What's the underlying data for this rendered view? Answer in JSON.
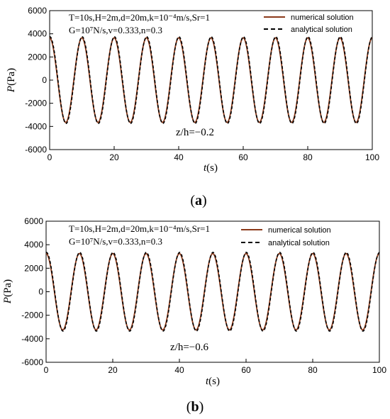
{
  "colors": {
    "numerical": "#8b3a1a",
    "analytical": "#000000",
    "annotation": "#8b4513"
  },
  "panel_labels": {
    "a": "a",
    "b": "b"
  },
  "legend": {
    "numerical": "numerical solution",
    "analytical": "analytical solution"
  },
  "params": {
    "line1": "T=10s,H=2m,d=20m,k=10⁻⁴m/s,Sr=1",
    "line2": "G=10⁷N/s,v=0.333,n=0.3"
  },
  "chart_data": [
    {
      "type": "line",
      "panel": "a",
      "xlabel": "t(s)",
      "ylabel": "P(Pa)",
      "xlim": [
        0,
        100
      ],
      "ylim": [
        -6000,
        6000
      ],
      "xticks": [
        0,
        20,
        40,
        60,
        80,
        100
      ],
      "yticks": [
        6000,
        4000,
        2000,
        0,
        -2000,
        -4000,
        -6000
      ],
      "annotation": "z/h=−0.2",
      "period": 10,
      "series": [
        {
          "name": "numerical solution",
          "style": "solid",
          "amplitude": 3650,
          "phase_shift": 0
        },
        {
          "name": "analytical solution",
          "style": "dashed",
          "amplitude": 3750,
          "phase_shift": 0.08
        }
      ]
    },
    {
      "type": "line",
      "panel": "b",
      "xlabel": "t(s)",
      "ylabel": "P(Pa)",
      "xlim": [
        0,
        100
      ],
      "ylim": [
        -6000,
        6000
      ],
      "xticks": [
        0,
        20,
        40,
        60,
        80,
        100
      ],
      "yticks": [
        6000,
        4000,
        2000,
        0,
        -2000,
        -4000,
        -6000
      ],
      "annotation": "z/h=−0.6",
      "period": 10,
      "series": [
        {
          "name": "numerical solution",
          "style": "solid",
          "amplitude": 3250,
          "phase_shift": 0
        },
        {
          "name": "analytical solution",
          "style": "dashed",
          "amplitude": 3350,
          "phase_shift": 0.08
        }
      ]
    }
  ]
}
